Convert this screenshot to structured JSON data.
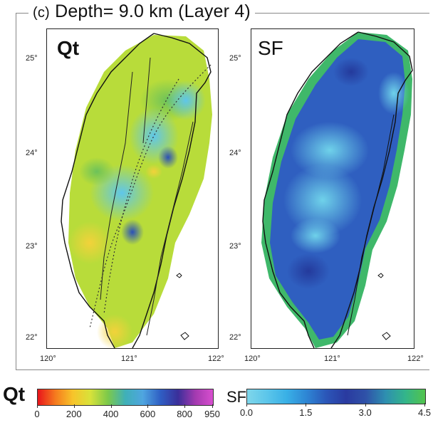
{
  "figure": {
    "title_tag": "(c)",
    "title": "Depth= 9.0 km (Layer 4)"
  },
  "panels": {
    "left_label": "Qt",
    "right_label": "SF"
  },
  "axes": {
    "lat_ticks": [
      "25°",
      "24°",
      "23°",
      "22°"
    ],
    "lon_ticks": [
      "120°",
      "121°",
      "122°"
    ]
  },
  "colorbars": {
    "qt": {
      "label": "Qt",
      "ticks": [
        "0",
        "200",
        "400",
        "600",
        "800",
        "950"
      ],
      "tick_values": [
        0,
        200,
        400,
        600,
        800,
        950
      ],
      "range": [
        0,
        950
      ],
      "colors": [
        "#e8141b",
        "#f57a1e",
        "#f7c42a",
        "#d8e23a",
        "#7cc94a",
        "#3fb0b8",
        "#4fa5e0",
        "#2f5fc4",
        "#3a2f9a",
        "#a43ab0",
        "#d84fcf"
      ]
    },
    "sf": {
      "label": "SF",
      "ticks": [
        "0.0",
        "1.5",
        "3.0",
        "4.5"
      ],
      "tick_values": [
        0.0,
        1.5,
        3.0,
        4.5
      ],
      "range": [
        0.0,
        4.5
      ],
      "colors": [
        "#7fd6ea",
        "#5cc6ea",
        "#39b0e6",
        "#2e86d4",
        "#2b56b8",
        "#2a3aa0",
        "#2f52a8",
        "#2e8fb0",
        "#33b58a",
        "#52c44c"
      ]
    }
  }
}
